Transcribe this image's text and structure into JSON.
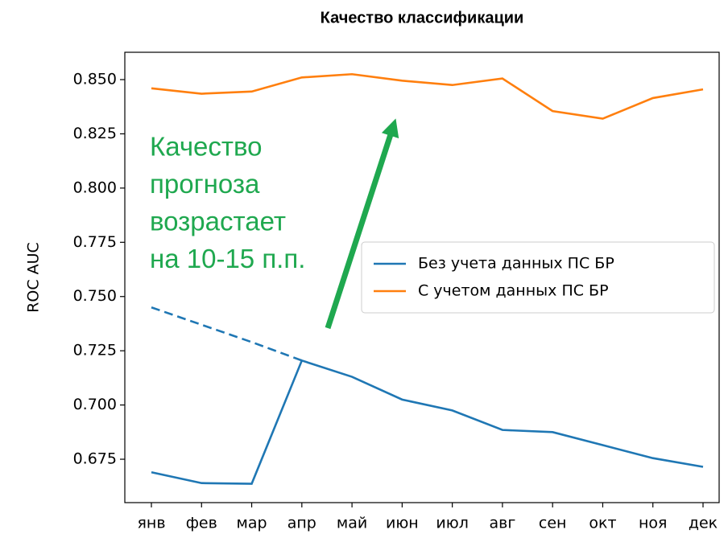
{
  "chart_data": {
    "type": "line",
    "title": "Качество классификации",
    "y_label": "ROC AUC",
    "categories": [
      "янв",
      "фев",
      "мар",
      "апр",
      "май",
      "июн",
      "июл",
      "авг",
      "сен",
      "окт",
      "ноя",
      "дек"
    ],
    "series": [
      {
        "name": "Без учета данных ПС БР",
        "color": "#1f77b4",
        "values": [
          0.669,
          0.664,
          0.6637,
          0.7205,
          0.713,
          0.7025,
          0.6975,
          0.6885,
          0.6875,
          0.6815,
          0.6755,
          0.6715
        ]
      },
      {
        "name": "С учетом данных ПС БР",
        "color": "#ff7f0e",
        "values": [
          0.846,
          0.8435,
          0.8445,
          0.851,
          0.8525,
          0.8495,
          0.8475,
          0.8505,
          0.8355,
          0.832,
          0.8415,
          0.8455
        ]
      },
      {
        "color": "#1f77b4",
        "dashed": true,
        "values": [
          0.745,
          0.737,
          0.729,
          0.7205,
          null,
          null,
          null,
          null,
          null,
          null,
          null,
          null
        ]
      }
    ],
    "ylim": [
      0.655,
      0.8626
    ],
    "yticks": [
      {
        "value": 0.675,
        "label": "0.675"
      },
      {
        "value": 0.7,
        "label": "0.700"
      },
      {
        "value": 0.725,
        "label": "0.725"
      },
      {
        "value": 0.75,
        "label": "0.750"
      },
      {
        "value": 0.775,
        "label": "0.775"
      },
      {
        "value": 0.8,
        "label": "0.800"
      },
      {
        "value": 0.825,
        "label": "0.825"
      },
      {
        "value": 0.85,
        "label": "0.850"
      }
    ],
    "annotation": [
      "Качество",
      "прогноза",
      "возрастает",
      "на 10-15 п.п."
    ],
    "annotation_color": "#1fa84f",
    "legend": "center right"
  }
}
